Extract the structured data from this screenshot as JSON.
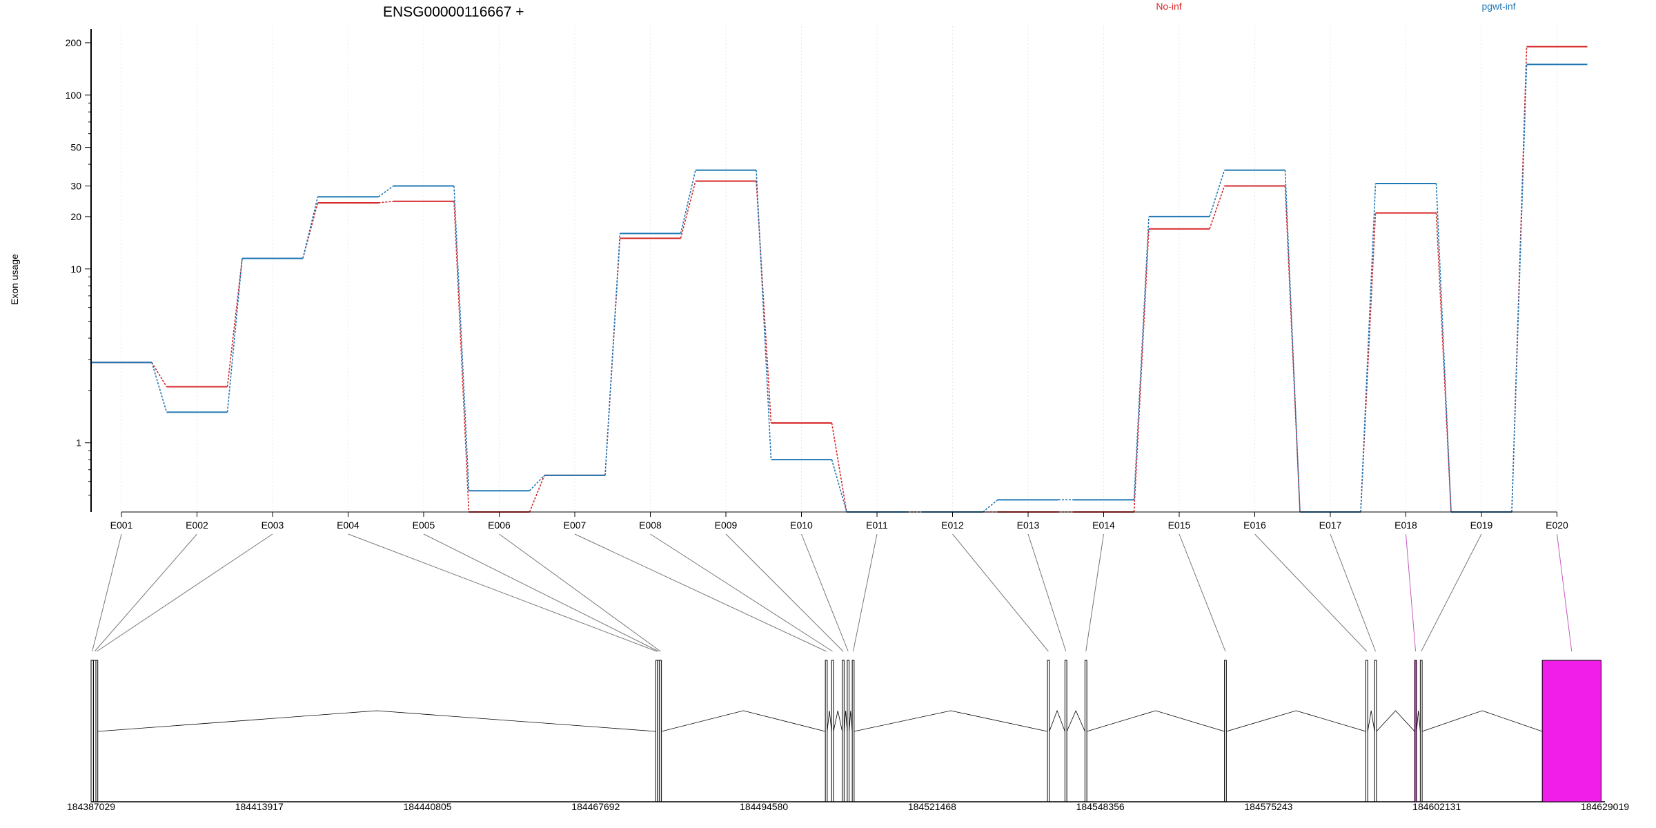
{
  "chart_data": {
    "type": "line",
    "title": "ENSG00000116667 +",
    "ylabel": "Exon usage",
    "y_scale": "log",
    "yticks": [
      1,
      10,
      20,
      30,
      50,
      100,
      200
    ],
    "ylim": [
      0.4,
      240
    ],
    "grid": "vertical dotted",
    "legend_placement": "top-right",
    "categories": [
      "E001",
      "E002",
      "E003",
      "E004",
      "E005",
      "E006",
      "E007",
      "E008",
      "E009",
      "E010",
      "E011",
      "E012",
      "E013",
      "E014",
      "E015",
      "E016",
      "E017",
      "E018",
      "E019",
      "E020"
    ],
    "series": [
      {
        "name": "No-inf",
        "color": "#d62728",
        "values": [
          2.9,
          2.1,
          11.5,
          24,
          24.5,
          0.4,
          0.65,
          15,
          32,
          1.3,
          0.4,
          0.4,
          0.4,
          0.4,
          17,
          30,
          0.4,
          21,
          0.4,
          190
        ]
      },
      {
        "name": "pgwt-inf",
        "color": "#1f77b4",
        "values": [
          2.9,
          1.5,
          11.5,
          26,
          30,
          0.53,
          0.65,
          16,
          37,
          0.8,
          0.4,
          0.4,
          0.47,
          0.47,
          20,
          37,
          0.4,
          31,
          0.4,
          150
        ]
      }
    ],
    "highlighted_exons": [
      "E018",
      "E020"
    ],
    "highlight_color": "#f01ee8",
    "genomic_ticks": [
      "184387029",
      "184413917",
      "184440805",
      "184467692",
      "184494580",
      "184521468",
      "184548356",
      "184575243",
      "184602131",
      "184629019"
    ],
    "genomic_range": [
      184387029,
      184629019
    ],
    "exon_coordinates": [
      [
        184387029,
        184387400
      ],
      [
        184387400,
        184387800
      ],
      [
        184387800,
        184388100
      ],
      [
        184477300,
        184477600
      ],
      [
        184477600,
        184477900
      ],
      [
        184477900,
        184478200
      ],
      [
        184504400,
        184504700
      ],
      [
        184505400,
        184505700
      ],
      [
        184507100,
        184507400
      ],
      [
        184507900,
        184508200
      ],
      [
        184508700,
        184509000
      ],
      [
        184539900,
        184540200
      ],
      [
        184542700,
        184543000
      ],
      [
        184545900,
        184546200
      ],
      [
        184568200,
        184568500
      ],
      [
        184590800,
        184591100
      ],
      [
        184592200,
        184592500
      ],
      [
        184598600,
        184598900
      ],
      [
        184599500,
        184599800
      ],
      [
        184619000,
        184628400
      ]
    ]
  }
}
